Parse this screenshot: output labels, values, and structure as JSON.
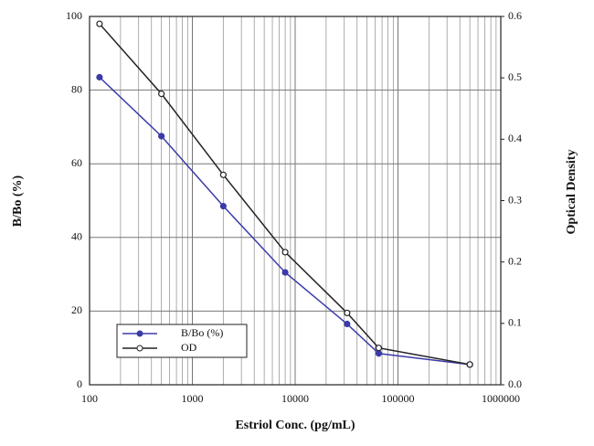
{
  "chart_data": {
    "type": "line",
    "x_label": "Estriol Conc. (pg/mL)",
    "y_label": "B/Bo (%)",
    "y2_label": "Optical Density",
    "x": [
      125,
      500,
      2000,
      8000,
      32000,
      65000,
      500000
    ],
    "xlim": [
      100,
      1000000
    ],
    "xticks": [
      100,
      1000,
      10000,
      100000,
      1000000
    ],
    "xscale": "log",
    "ylim": [
      0,
      100
    ],
    "yticks": [
      0,
      20,
      40,
      60,
      80,
      100
    ],
    "y2lim": [
      0,
      0.6
    ],
    "y2ticks": [
      {
        "value": 0,
        "label": "0.0"
      },
      0.1,
      0.2,
      0.3,
      0.4,
      0.5,
      0.6
    ],
    "grid": true,
    "legend": "lower left",
    "series": [
      {
        "name": "B/Bo (%)",
        "color": "#3b3ba8",
        "marker": "filled",
        "values": [
          83.5,
          67.5,
          48.5,
          30.5,
          16.5,
          8.5,
          5.5
        ]
      },
      {
        "name": "OD",
        "color": "#222222",
        "marker": "open",
        "axis": "y2",
        "values": [
          0.588,
          0.474,
          0.342,
          0.216,
          0.117,
          0.06,
          0.033
        ]
      }
    ]
  }
}
